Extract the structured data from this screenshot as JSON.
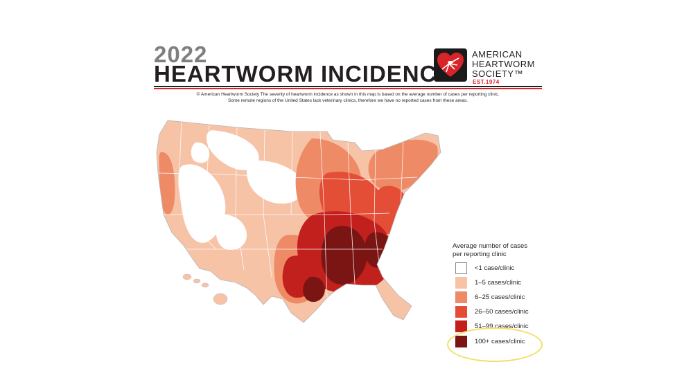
{
  "header": {
    "year": "2022",
    "title": "HEARTWORM INCIDENCE",
    "org_line1": "AMERICAN",
    "org_line2": "HEARTWORM",
    "org_line3": "SOCIETY™",
    "est": "EST.1974",
    "credit_line1": "© American Heartworm Society The severity of heartworm incidence as shown in this map is based on the average number of cases per reporting clinic.",
    "credit_line2": "Some remote regions of the United States lack veterinary clinics, therefore we have no reported cases from these areas."
  },
  "legend": {
    "title_line1": "Average number of cases",
    "title_line2": "per reporting clinic",
    "items": [
      {
        "label": "<1 case/clinic",
        "color": "#ffffff"
      },
      {
        "label": "1–5 cases/clinic",
        "color": "#f7c3a7"
      },
      {
        "label": "6–25 cases/clinic",
        "color": "#ee8a66"
      },
      {
        "label": "26–50 cases/clinic",
        "color": "#e44d36"
      },
      {
        "label": "51–99 cases/clinic",
        "color": "#c1201d"
      },
      {
        "label": "100+ cases/clinic",
        "color": "#7a1513"
      }
    ]
  },
  "colors": {
    "brand_red": "#d7242a",
    "highlight_circle": "#f3df65",
    "state_border": "#ffffff"
  },
  "icons": {
    "logo": "heart-mosquito-logo-icon"
  }
}
